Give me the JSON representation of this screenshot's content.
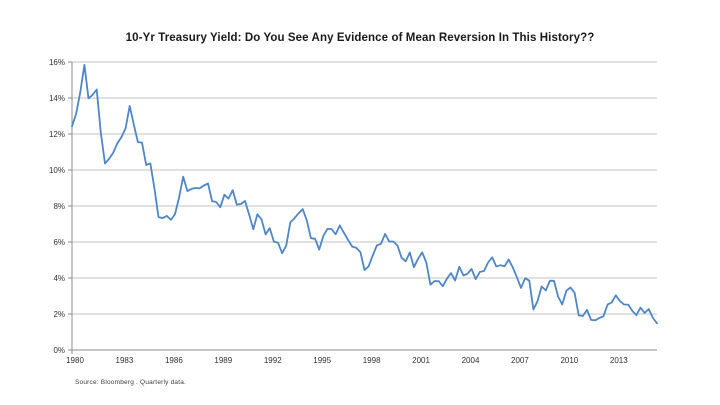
{
  "page": {
    "background_color": "#ffffff"
  },
  "chart": {
    "source_note": "Source:  Bloomberg . Quarterly data."
  },
  "chart_data": {
    "type": "line",
    "title": "10-Yr Treasury Yield: Do You See Any Evidence of Mean Reversion In This History??",
    "series_name": "10-Yr Treasury Yield",
    "frequency": "quarterly",
    "start_period": "1980-Q4",
    "end_period": "2016-Q2",
    "values": [
      12.43,
      13.12,
      14.3,
      15.84,
      13.98,
      14.18,
      14.47,
      12.07,
      10.36,
      10.62,
      10.96,
      11.48,
      11.82,
      12.32,
      13.56,
      12.52,
      11.55,
      11.52,
      10.27,
      10.37,
      9.0,
      7.39,
      7.33,
      7.45,
      7.23,
      7.55,
      8.47,
      9.63,
      8.83,
      8.95,
      9.0,
      8.98,
      9.14,
      9.25,
      8.27,
      8.22,
      7.93,
      8.63,
      8.41,
      8.88,
      8.08,
      8.11,
      8.28,
      7.53,
      6.71,
      7.54,
      7.26,
      6.42,
      6.77,
      6.02,
      5.96,
      5.38,
      5.79,
      7.09,
      7.32,
      7.6,
      7.83,
      7.2,
      6.21,
      6.18,
      5.58,
      6.34,
      6.73,
      6.72,
      6.43,
      6.92,
      6.51,
      6.12,
      5.75,
      5.67,
      5.44,
      4.44,
      4.65,
      5.25,
      5.81,
      5.9,
      6.45,
      6.03,
      6.03,
      5.8,
      5.12,
      4.93,
      5.42,
      4.6,
      5.07,
      5.42,
      4.86,
      3.63,
      3.83,
      3.83,
      3.54,
      3.96,
      4.27,
      3.86,
      4.62,
      4.14,
      4.24,
      4.5,
      3.94,
      4.34,
      4.39,
      4.86,
      5.15,
      4.64,
      4.71,
      4.65,
      5.03,
      4.59,
      4.04,
      3.45,
      3.99,
      3.85,
      2.25,
      2.71,
      3.53,
      3.31,
      3.85,
      3.84,
      2.97,
      2.53,
      3.3,
      3.47,
      3.18,
      1.92,
      1.89,
      2.23,
      1.67,
      1.65,
      1.78,
      1.87,
      2.52,
      2.64,
      3.04,
      2.73,
      2.53,
      2.52,
      2.17,
      1.94,
      2.35,
      2.06,
      2.27,
      1.78,
      1.49
    ],
    "x_tick_labels": [
      "1980",
      "1983",
      "1986",
      "1989",
      "1992",
      "1995",
      "1998",
      "2001",
      "2004",
      "2007",
      "2010",
      "2013"
    ],
    "x_tick_every_n_points": 12,
    "y_tick_labels": [
      "0%",
      "2%",
      "4%",
      "6%",
      "8%",
      "10%",
      "12%",
      "14%",
      "16%"
    ],
    "ylim": [
      0,
      16
    ],
    "grid": "horizontal",
    "legend": "none",
    "line_color": "#4f86c6",
    "gridline_color": "#c3c3c3",
    "axis_color": "#8c8c8c",
    "text_color": "#303030"
  }
}
